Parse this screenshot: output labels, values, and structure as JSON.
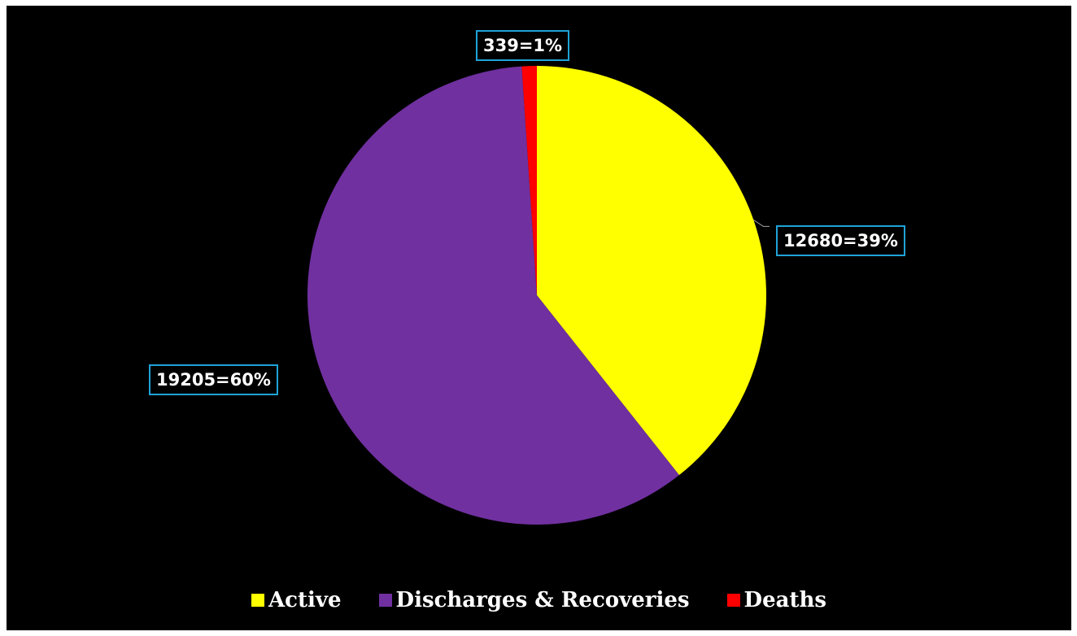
{
  "chart_data": {
    "type": "pie",
    "title": "",
    "categories": [
      "Active",
      "Discharges & Recoveries",
      "Deaths"
    ],
    "values": [
      12680,
      19205,
      339
    ],
    "percent": [
      39,
      60,
      1
    ],
    "labels": [
      "12680=39%",
      "19205=60%",
      "339=1%"
    ],
    "colors": [
      "#ffff00",
      "#7030a0",
      "#ff0000"
    ],
    "label_border_color": "#1fa3d8",
    "legend_position": "bottom",
    "start_angle": "12 o'clock, clockwise"
  }
}
